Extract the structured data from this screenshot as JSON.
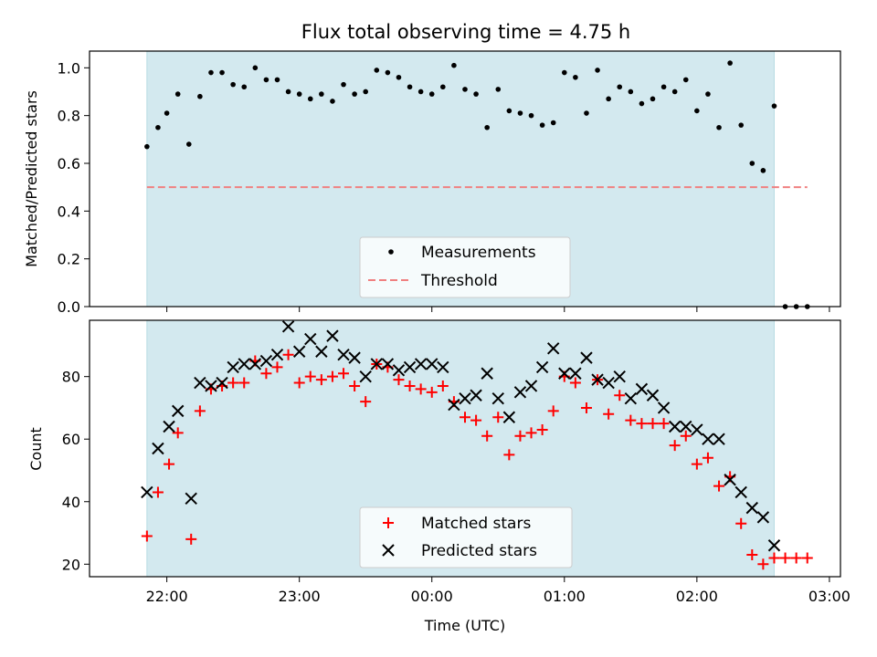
{
  "chart_data": [
    {
      "type": "scatter",
      "title": "Flux total observing time = 4.75 h",
      "xlabel": "",
      "ylabel": "Matched/Predicted stars",
      "ylim": [
        0,
        1.07
      ],
      "xlim": [
        "21:25",
        "03:05"
      ],
      "x_ticks": [
        "22:00",
        "23:00",
        "00:00",
        "01:00",
        "02:00",
        "03:00"
      ],
      "x_tick_labels_shown": false,
      "y_ticks": [
        "0.0",
        "0.2",
        "0.4",
        "0.6",
        "0.8",
        "1.0"
      ],
      "observing_window": {
        "start": "21:51",
        "end": "02:35",
        "color": "#d3e9ef"
      },
      "threshold": {
        "value": 0.5,
        "start": "21:51",
        "end": "02:50",
        "color": "#f08080",
        "style": "dashed"
      },
      "legend": {
        "position": "bottom-center",
        "entries": [
          "Measurements",
          "Threshold"
        ]
      },
      "series": [
        {
          "name": "Measurements",
          "color": "#000000",
          "marker": "dot",
          "x": [
            "21:51",
            "21:56",
            "22:00",
            "22:05",
            "22:10",
            "22:15",
            "22:20",
            "22:25",
            "22:30",
            "22:35",
            "22:40",
            "22:45",
            "22:50",
            "22:55",
            "23:00",
            "23:05",
            "23:10",
            "23:15",
            "23:20",
            "23:25",
            "23:30",
            "23:35",
            "23:40",
            "23:45",
            "23:50",
            "23:55",
            "00:00",
            "00:05",
            "00:10",
            "00:15",
            "00:20",
            "00:25",
            "00:30",
            "00:35",
            "00:40",
            "00:45",
            "00:50",
            "00:55",
            "01:00",
            "01:05",
            "01:10",
            "01:15",
            "01:20",
            "01:25",
            "01:30",
            "01:35",
            "01:40",
            "01:45",
            "01:50",
            "01:55",
            "02:00",
            "02:05",
            "02:10",
            "02:15",
            "02:20",
            "02:25",
            "02:30",
            "02:35",
            "02:40",
            "02:45",
            "02:50"
          ],
          "y": [
            0.67,
            0.75,
            0.81,
            0.89,
            0.68,
            0.88,
            0.98,
            0.98,
            0.93,
            0.92,
            1.0,
            0.95,
            0.95,
            0.9,
            0.89,
            0.87,
            0.89,
            0.86,
            0.93,
            0.89,
            0.9,
            0.99,
            0.98,
            0.96,
            0.92,
            0.9,
            0.89,
            0.92,
            1.01,
            0.91,
            0.89,
            0.75,
            0.91,
            0.82,
            0.81,
            0.8,
            0.76,
            0.77,
            0.98,
            0.96,
            0.81,
            0.99,
            0.87,
            0.92,
            0.9,
            0.85,
            0.87,
            0.92,
            0.9,
            0.95,
            0.82,
            0.89,
            0.75,
            1.02,
            0.76,
            0.6,
            0.57,
            0.84,
            0.0,
            0.0,
            0.0
          ]
        }
      ]
    },
    {
      "type": "scatter",
      "title": "",
      "xlabel": "Time (UTC)",
      "ylabel": "Count",
      "ylim": [
        16,
        98
      ],
      "xlim": [
        "21:25",
        "03:05"
      ],
      "x_ticks": [
        "22:00",
        "23:00",
        "00:00",
        "01:00",
        "02:00",
        "03:00"
      ],
      "y_ticks": [
        "20",
        "40",
        "60",
        "80"
      ],
      "observing_window": {
        "start": "21:51",
        "end": "02:35",
        "color": "#d3e9ef"
      },
      "legend": {
        "position": "bottom-center",
        "entries": [
          "Matched stars",
          "Predicted stars"
        ]
      },
      "series": [
        {
          "name": "Matched stars",
          "color": "#ff0000",
          "marker": "plus",
          "x": [
            "21:51",
            "21:56",
            "22:01",
            "22:05",
            "22:11",
            "22:15",
            "22:20",
            "22:25",
            "22:30",
            "22:35",
            "22:40",
            "22:45",
            "22:50",
            "22:55",
            "23:00",
            "23:05",
            "23:10",
            "23:15",
            "23:20",
            "23:25",
            "23:30",
            "23:35",
            "23:40",
            "23:45",
            "23:50",
            "23:55",
            "00:00",
            "00:05",
            "00:10",
            "00:15",
            "00:20",
            "00:25",
            "00:30",
            "00:35",
            "00:40",
            "00:45",
            "00:50",
            "00:55",
            "01:00",
            "01:05",
            "01:10",
            "01:15",
            "01:20",
            "01:25",
            "01:30",
            "01:35",
            "01:40",
            "01:45",
            "01:50",
            "01:55",
            "02:00",
            "02:05",
            "02:10",
            "02:15",
            "02:20",
            "02:25",
            "02:30",
            "02:35",
            "02:40",
            "02:45",
            "02:50"
          ],
          "y": [
            29,
            43,
            52,
            62,
            28,
            69,
            76,
            77,
            78,
            78,
            85,
            81,
            83,
            87,
            78,
            80,
            79,
            80,
            81,
            77,
            72,
            84,
            83,
            79,
            77,
            76,
            75,
            77,
            72,
            67,
            66,
            61,
            67,
            55,
            61,
            62,
            63,
            69,
            80,
            78,
            70,
            79,
            68,
            74,
            66,
            65,
            65,
            65,
            58,
            61,
            52,
            54,
            45,
            48,
            33,
            23,
            20,
            22,
            22,
            22,
            22
          ]
        },
        {
          "name": "Predicted stars",
          "color": "#000000",
          "marker": "x",
          "x": [
            "21:51",
            "21:56",
            "22:01",
            "22:05",
            "22:11",
            "22:15",
            "22:20",
            "22:25",
            "22:30",
            "22:35",
            "22:40",
            "22:45",
            "22:50",
            "22:55",
            "23:00",
            "23:05",
            "23:10",
            "23:15",
            "23:20",
            "23:25",
            "23:30",
            "23:35",
            "23:40",
            "23:45",
            "23:50",
            "23:55",
            "00:00",
            "00:05",
            "00:10",
            "00:15",
            "00:20",
            "00:25",
            "00:30",
            "00:35",
            "00:40",
            "00:45",
            "00:50",
            "00:55",
            "01:00",
            "01:05",
            "01:10",
            "01:15",
            "01:20",
            "01:25",
            "01:30",
            "01:35",
            "01:40",
            "01:45",
            "01:50",
            "01:55",
            "02:00",
            "02:05",
            "02:10",
            "02:15",
            "02:20",
            "02:25",
            "02:30",
            "02:35"
          ],
          "y": [
            43,
            57,
            64,
            69,
            41,
            78,
            77,
            78,
            83,
            84,
            84,
            85,
            87,
            96,
            88,
            92,
            88,
            93,
            87,
            86,
            80,
            84,
            84,
            82,
            83,
            84,
            84,
            83,
            71,
            73,
            74,
            81,
            73,
            67,
            75,
            77,
            83,
            89,
            81,
            81,
            86,
            79,
            78,
            80,
            73,
            76,
            74,
            70,
            64,
            64,
            63,
            60,
            60,
            47,
            43,
            38,
            35,
            26
          ]
        }
      ]
    }
  ]
}
